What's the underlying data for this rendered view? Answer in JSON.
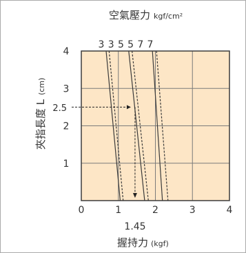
{
  "chart_data": {
    "type": "line",
    "title": "空氣壓力",
    "title_unit": "kgf/cm²",
    "xlabel": "握持力",
    "xlabel_unit": "(kgf)",
    "ylabel": "夾指長度 L",
    "ylabel_unit": "(cm)",
    "xlim": [
      0,
      4
    ],
    "ylim": [
      0,
      4
    ],
    "x_ticks": [
      "0",
      "1",
      "2",
      "3",
      "4"
    ],
    "y_ticks": [
      "1",
      "2",
      "3",
      "4"
    ],
    "grid": true,
    "plot_bg": "#fde6c6",
    "pressure_labels": [
      "3",
      "3",
      "5",
      "5",
      "7",
      "7"
    ],
    "series": [
      {
        "label": "3",
        "style": "solid",
        "x": [
          0.67,
          1.05
        ]
      },
      {
        "label": "3",
        "style": "dashed",
        "x": [
          0.75,
          1.13
        ]
      },
      {
        "label": "5",
        "style": "solid",
        "x": [
          1.28,
          1.71
        ]
      },
      {
        "label": "5",
        "style": "dashed",
        "x": [
          1.37,
          1.81
        ]
      },
      {
        "label": "7",
        "style": "solid",
        "x": [
          1.92,
          2.19
        ]
      },
      {
        "label": "7",
        "style": "dashed",
        "x": [
          2.03,
          2.34
        ]
      }
    ],
    "series_y": [
      4,
      0
    ],
    "annotation": {
      "y": 2.5,
      "y_label": "2.5",
      "x": 1.45,
      "x_label": "1.45"
    },
    "colors": {
      "frame": "#a9a9a9",
      "axis": "#3c3c3c",
      "grid": "#7a7a7a",
      "text": "#333333",
      "line": "#3a3a3a"
    }
  }
}
